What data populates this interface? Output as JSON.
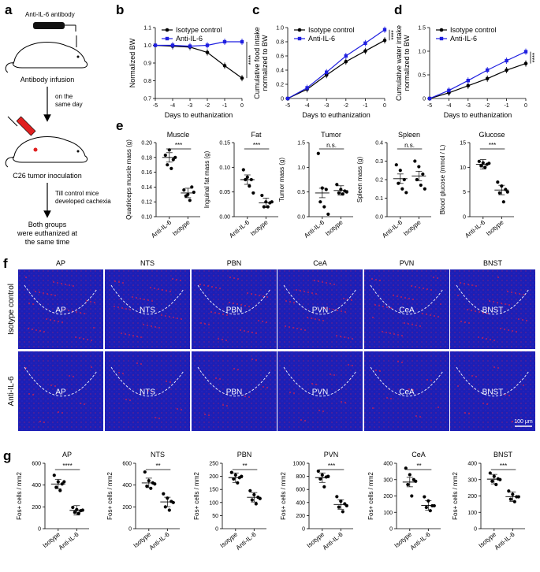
{
  "panels": {
    "a": "a",
    "b": "b",
    "c": "c",
    "d": "d",
    "e": "e",
    "f": "f",
    "g": "g"
  },
  "schematic": {
    "antibody": "Anti-IL-6 antibody",
    "infusion": "Antibody infusion",
    "same_day": [
      "on the",
      "same day"
    ],
    "inoculation": "C26 tumor inoculation",
    "till": [
      "Till control mice",
      "developed cachexia"
    ],
    "euthanized": [
      "Both groups",
      "were euthanized at",
      "the same time"
    ]
  },
  "colors": {
    "isotype": "#000000",
    "anti": "#1f1fe0",
    "fos": "#e0204a",
    "dapi": "#1a1acc"
  },
  "chart_data": [
    {
      "id": "b",
      "type": "line",
      "x": [
        -5,
        -4,
        -3,
        -2,
        -1,
        0
      ],
      "xlabel": "Days to euthanization",
      "ylabel": "Normalized BW",
      "ylim": [
        0.7,
        1.1
      ],
      "yticks": [
        "0.7",
        "0.8",
        "0.9",
        "1.0",
        "1.1"
      ],
      "series": [
        {
          "name": "Isotype control",
          "values": [
            1.0,
            0.995,
            0.99,
            0.96,
            0.885,
            0.815
          ]
        },
        {
          "name": "Anti-IL-6",
          "values": [
            1.0,
            1.0,
            0.995,
            1.0,
            1.02,
            1.02
          ]
        }
      ],
      "sig": "****"
    },
    {
      "id": "c",
      "type": "line",
      "x": [
        -5,
        -4,
        -3,
        -2,
        -1,
        0
      ],
      "xlabel": "Days to euthanization",
      "ylabel": "Cumulative food intake normalized to BW",
      "ylim": [
        0,
        1.0
      ],
      "yticks": [
        "0",
        "0.2",
        "0.4",
        "0.6",
        "0.8",
        "1.0"
      ],
      "series": [
        {
          "name": "Isotype control",
          "values": [
            0,
            0.13,
            0.33,
            0.52,
            0.67,
            0.82
          ]
        },
        {
          "name": "Anti-IL-6",
          "values": [
            0,
            0.15,
            0.37,
            0.6,
            0.78,
            0.97
          ]
        }
      ],
      "sig": "****"
    },
    {
      "id": "d",
      "type": "line",
      "x": [
        -5,
        -4,
        -3,
        -2,
        -1,
        0
      ],
      "xlabel": "Days to euthanization",
      "ylabel": "Cumulative water intake normalized to BW",
      "ylim": [
        0,
        1.5
      ],
      "yticks": [
        "0",
        "0.5",
        "1.0",
        "1.5"
      ],
      "series": [
        {
          "name": "Isotype control",
          "values": [
            0,
            0.12,
            0.27,
            0.42,
            0.6,
            0.74
          ]
        },
        {
          "name": "Anti-IL-6",
          "values": [
            0,
            0.17,
            0.38,
            0.6,
            0.8,
            0.99
          ]
        }
      ],
      "sig": "****"
    },
    {
      "id": "e-muscle",
      "type": "scatter",
      "title": "Muscle",
      "ylabel": "Quadriceps muscle mass (g)",
      "ylim": [
        0.1,
        0.2
      ],
      "yticks": [
        "0.10",
        "0.12",
        "0.14",
        "0.16",
        "0.18",
        "0.20"
      ],
      "categories": [
        "Anti-IL-6",
        "Isotype"
      ],
      "groups": [
        [
          0.183,
          0.19,
          0.177,
          0.17,
          0.165,
          0.18
        ],
        [
          0.136,
          0.13,
          0.14,
          0.128,
          0.122,
          0.133
        ]
      ],
      "means": [
        0.18,
        0.132
      ],
      "sig": "***"
    },
    {
      "id": "e-fat",
      "type": "scatter",
      "title": "Fat",
      "ylabel": "Inguinal fat mass (g)",
      "ylim": [
        0,
        0.15
      ],
      "yticks": [
        "0.00",
        "0.05",
        "0.10",
        "0.15"
      ],
      "categories": [
        "Anti-IL-6",
        "Isotype"
      ],
      "groups": [
        [
          0.095,
          0.08,
          0.075,
          0.075,
          0.062,
          0.048
        ],
        [
          0.043,
          0.03,
          0.028,
          0.02,
          0.02,
          0.03
        ]
      ],
      "means": [
        0.075,
        0.028
      ],
      "sig": "***"
    },
    {
      "id": "e-tumor",
      "type": "scatter",
      "title": "Tumor",
      "ylabel": "Tumor mass (g)",
      "ylim": [
        0,
        1.5
      ],
      "yticks": [
        "0.0",
        "0.5",
        "1.0",
        "1.5"
      ],
      "categories": [
        "Anti-IL-6",
        "Isotype"
      ],
      "groups": [
        [
          1.28,
          0.58,
          0.55,
          0.3,
          0.2,
          0.05
        ],
        [
          0.65,
          0.55,
          0.52,
          0.48,
          0.46,
          0.5
        ]
      ],
      "means": [
        0.48,
        0.53
      ],
      "sig": "n.s."
    },
    {
      "id": "e-spleen",
      "type": "scatter",
      "title": "Spleen",
      "ylabel": "Spleen mass (g)",
      "ylim": [
        0,
        0.4
      ],
      "yticks": [
        "0.0",
        "0.1",
        "0.2",
        "0.3",
        "0.4"
      ],
      "categories": [
        "Anti-IL-6",
        "Isotype"
      ],
      "groups": [
        [
          0.28,
          0.25,
          0.2,
          0.18,
          0.15,
          0.13
        ],
        [
          0.3,
          0.27,
          0.23,
          0.2,
          0.17,
          0.15
        ]
      ],
      "means": [
        0.205,
        0.22
      ],
      "sig": "n.s."
    },
    {
      "id": "e-glucose",
      "type": "scatter",
      "title": "Glucose",
      "ylabel": "Blood glucose (mmol / L)",
      "ylim": [
        0,
        15
      ],
      "yticks": [
        "0",
        "5",
        "10",
        "15"
      ],
      "categories": [
        "Anti-IL-6",
        "Isotype"
      ],
      "groups": [
        [
          11.2,
          10.9,
          10.6,
          10.3,
          10.0,
          10.8
        ],
        [
          7.0,
          6.2,
          5.5,
          4.8,
          3.0,
          5.0
        ]
      ],
      "means": [
        10.6,
        5.4
      ],
      "sig": "***"
    },
    {
      "id": "g-AP",
      "type": "scatter",
      "title": "AP",
      "ylabel": "Fos+ cells / mm2",
      "ylim": [
        0,
        600
      ],
      "yticks": [
        "0",
        "200",
        "400",
        "600"
      ],
      "categories": [
        "Isotype",
        "Anti-IL-6"
      ],
      "groups": [
        [
          490,
          430,
          410,
          380,
          350,
          430
        ],
        [
          195,
          175,
          165,
          150,
          140,
          170
        ]
      ],
      "means": [
        410,
        168
      ],
      "sig": "****"
    },
    {
      "id": "g-NTS",
      "type": "scatter",
      "title": "NTS",
      "ylabel": "Fos+ cells / mm2",
      "ylim": [
        0,
        600
      ],
      "yticks": [
        "0",
        "200",
        "400",
        "600"
      ],
      "categories": [
        "Isotype",
        "Anti-IL-6"
      ],
      "groups": [
        [
          520,
          440,
          420,
          390,
          370,
          410
        ],
        [
          320,
          280,
          250,
          200,
          170,
          240
        ]
      ],
      "means": [
        420,
        245
      ],
      "sig": "**"
    },
    {
      "id": "g-PBN",
      "type": "scatter",
      "title": "PBN",
      "ylabel": "Fos+ cells / mm2",
      "ylim": [
        0,
        250
      ],
      "yticks": [
        "0",
        "50",
        "100",
        "150",
        "200",
        "250"
      ],
      "categories": [
        "Isotype",
        "Anti-IL-6"
      ],
      "groups": [
        [
          215,
          205,
          195,
          190,
          175,
          200
        ],
        [
          145,
          130,
          120,
          110,
          95,
          115
        ]
      ],
      "means": [
        195,
        120
      ],
      "sig": "**"
    },
    {
      "id": "g-PVN",
      "type": "scatter",
      "title": "PVN",
      "ylabel": "Fos+ cells / mm2",
      "ylim": [
        0,
        1000
      ],
      "yticks": [
        "0",
        "200",
        "400",
        "600",
        "800",
        "1000"
      ],
      "categories": [
        "Isotype",
        "Anti-IL-6"
      ],
      "groups": [
        [
          880,
          820,
          790,
          760,
          640,
          800
        ],
        [
          490,
          420,
          380,
          330,
          260,
          350
        ]
      ],
      "means": [
        780,
        370
      ],
      "sig": "***"
    },
    {
      "id": "g-CeA",
      "type": "scatter",
      "title": "CeA",
      "ylabel": "Fos+ cells / mm2",
      "ylim": [
        0,
        400
      ],
      "yticks": [
        "0",
        "100",
        "200",
        "300",
        "400"
      ],
      "categories": [
        "Isotype",
        "Anti-IL-6"
      ],
      "groups": [
        [
          370,
          330,
          300,
          270,
          200,
          290
        ],
        [
          195,
          170,
          140,
          130,
          110,
          140
        ]
      ],
      "means": [
        285,
        142
      ],
      "sig": "**"
    },
    {
      "id": "g-BNST",
      "type": "scatter",
      "title": "BNST",
      "ylabel": "Fos+ cells / mm2",
      "ylim": [
        0,
        400
      ],
      "yticks": [
        "0",
        "100",
        "200",
        "300",
        "400"
      ],
      "categories": [
        "Isotype",
        "Anti-IL-6"
      ],
      "groups": [
        [
          340,
          320,
          305,
          290,
          270,
          300
        ],
        [
          230,
          210,
          195,
          180,
          165,
          195
        ]
      ],
      "means": [
        303,
        196
      ],
      "sig": "***"
    }
  ],
  "micro": {
    "col_titles": [
      "AP",
      "NTS",
      "PBN",
      "CeA",
      "PVN",
      "BNST"
    ],
    "row_labels": [
      "Isotype control",
      "Anti-IL-6"
    ],
    "top_labels": [
      "AP",
      "NTS",
      "PBN",
      "PVN",
      "CeA",
      "BNST"
    ],
    "bottom_labels": [
      "AP",
      "NTS",
      "PBN",
      "PVN",
      "CeA",
      "BNST"
    ],
    "scale_bar": "100 μm"
  }
}
